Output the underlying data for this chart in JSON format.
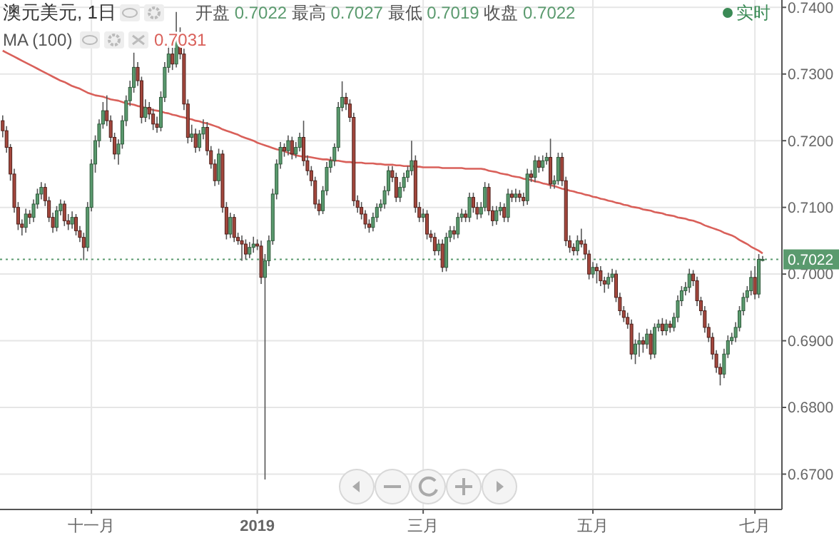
{
  "chart_data": {
    "type": "candlestick",
    "title": "澳元美元, 1日",
    "subtitle": "开盘 0.7022 最高 0.7027 最低 0.7019 收盘 0.7022",
    "annotations": [
      "0.7031",
      "实时"
    ],
    "categories": [
      null,
      null,
      null,
      null,
      null,
      null,
      null,
      null,
      null,
      null,
      null,
      null,
      null,
      null,
      null,
      null,
      null,
      null,
      null,
      null,
      null,
      null,
      null,
      "十一月",
      null,
      null,
      null,
      null,
      null,
      null,
      null,
      null,
      null,
      null,
      null,
      null,
      null,
      null,
      null,
      null,
      null,
      null,
      null,
      null,
      null,
      null,
      null,
      null,
      null,
      null,
      null,
      null,
      null,
      null,
      null,
      null,
      null,
      null,
      null,
      null,
      null,
      null,
      null,
      null,
      null,
      null,
      "2019",
      null,
      null,
      null,
      null,
      null,
      null,
      null,
      null,
      null,
      null,
      null,
      null,
      null,
      null,
      null,
      null,
      null,
      null,
      null,
      null,
      null,
      null,
      null,
      null,
      null,
      null,
      null,
      null,
      null,
      null,
      null,
      null,
      null,
      null,
      null,
      null,
      null,
      null,
      null,
      null,
      null,
      null,
      "三月",
      null,
      null,
      null,
      null,
      null,
      null,
      null,
      null,
      null,
      null,
      null,
      null,
      null,
      null,
      null,
      null,
      null,
      null,
      null,
      null,
      null,
      null,
      null,
      null,
      null,
      null,
      null,
      null,
      null,
      null,
      null,
      null,
      null,
      null,
      null,
      null,
      null,
      null,
      null,
      null,
      null,
      null,
      null,
      "五月",
      null,
      null,
      null,
      null,
      null,
      null,
      null,
      null,
      null,
      null,
      null,
      null,
      null,
      null,
      null,
      null,
      null,
      null,
      null,
      null,
      null,
      null,
      null,
      null,
      null,
      null,
      null,
      null,
      null,
      null,
      null,
      null,
      null,
      null,
      null,
      null,
      null,
      null,
      null,
      null,
      null,
      "七月",
      null,
      null
    ],
    "ohlc": [
      [
        0.723,
        0.7238,
        0.7205,
        0.7215
      ],
      [
        0.7215,
        0.7222,
        0.7182,
        0.719
      ],
      [
        0.719,
        0.7195,
        0.714,
        0.715
      ],
      [
        0.715,
        0.7158,
        0.7092,
        0.71
      ],
      [
        0.71,
        0.7108,
        0.7066,
        0.7075
      ],
      [
        0.7075,
        0.7082,
        0.7058,
        0.707
      ],
      [
        0.707,
        0.7098,
        0.7062,
        0.709
      ],
      [
        0.709,
        0.7096,
        0.7075,
        0.7085
      ],
      [
        0.7085,
        0.7112,
        0.7078,
        0.7105
      ],
      [
        0.7105,
        0.7128,
        0.7098,
        0.712
      ],
      [
        0.712,
        0.7138,
        0.7112,
        0.713
      ],
      [
        0.713,
        0.7136,
        0.7102,
        0.711
      ],
      [
        0.711,
        0.7116,
        0.7078,
        0.7085
      ],
      [
        0.7085,
        0.7092,
        0.7062,
        0.707
      ],
      [
        0.707,
        0.7102,
        0.7064,
        0.7095
      ],
      [
        0.7095,
        0.7112,
        0.7088,
        0.7105
      ],
      [
        0.7105,
        0.711,
        0.7072,
        0.708
      ],
      [
        0.708,
        0.709,
        0.7066,
        0.7075
      ],
      [
        0.7075,
        0.7094,
        0.7068,
        0.7085
      ],
      [
        0.7085,
        0.709,
        0.7058,
        0.7065
      ],
      [
        0.7065,
        0.7072,
        0.7048,
        0.7055
      ],
      [
        0.7055,
        0.7062,
        0.7021,
        0.704
      ],
      [
        0.704,
        0.7108,
        0.7034,
        0.71
      ],
      [
        0.71,
        0.7172,
        0.7094,
        0.7165
      ],
      [
        0.7165,
        0.7208,
        0.7152,
        0.72
      ],
      [
        0.72,
        0.7232,
        0.719,
        0.7225
      ],
      [
        0.7225,
        0.7258,
        0.7218,
        0.7245
      ],
      [
        0.7245,
        0.7268,
        0.7222,
        0.723
      ],
      [
        0.723,
        0.7238,
        0.7198,
        0.7205
      ],
      [
        0.7205,
        0.7212,
        0.7172,
        0.718
      ],
      [
        0.718,
        0.7202,
        0.7164,
        0.7195
      ],
      [
        0.7195,
        0.7238,
        0.7188,
        0.723
      ],
      [
        0.723,
        0.7268,
        0.7222,
        0.726
      ],
      [
        0.726,
        0.729,
        0.7252,
        0.728
      ],
      [
        0.728,
        0.7332,
        0.7272,
        0.731
      ],
      [
        0.731,
        0.7318,
        0.7282,
        0.729
      ],
      [
        0.729,
        0.7296,
        0.7226,
        0.7235
      ],
      [
        0.7235,
        0.7262,
        0.7228,
        0.725
      ],
      [
        0.725,
        0.7258,
        0.7232,
        0.724
      ],
      [
        0.724,
        0.7248,
        0.7216,
        0.7225
      ],
      [
        0.7225,
        0.7236,
        0.7212,
        0.722
      ],
      [
        0.722,
        0.7274,
        0.7214,
        0.7265
      ],
      [
        0.7265,
        0.7318,
        0.7258,
        0.731
      ],
      [
        0.731,
        0.7342,
        0.7302,
        0.733
      ],
      [
        0.733,
        0.734,
        0.7306,
        0.7315
      ],
      [
        0.7315,
        0.7393,
        0.731,
        0.736
      ],
      [
        0.736,
        0.737,
        0.7322,
        0.733
      ],
      [
        0.733,
        0.7338,
        0.7246,
        0.7255
      ],
      [
        0.7255,
        0.7262,
        0.7196,
        0.7205
      ],
      [
        0.7205,
        0.7224,
        0.7198,
        0.721
      ],
      [
        0.721,
        0.7218,
        0.7182,
        0.719
      ],
      [
        0.719,
        0.7216,
        0.7184,
        0.721
      ],
      [
        0.721,
        0.7232,
        0.7202,
        0.722
      ],
      [
        0.722,
        0.7228,
        0.7178,
        0.7185
      ],
      [
        0.7185,
        0.7192,
        0.7158,
        0.7165
      ],
      [
        0.7165,
        0.7172,
        0.7132,
        0.714
      ],
      [
        0.714,
        0.7188,
        0.7134,
        0.718
      ],
      [
        0.718,
        0.7186,
        0.7092,
        0.71
      ],
      [
        0.71,
        0.7108,
        0.7052,
        0.706
      ],
      [
        0.706,
        0.7092,
        0.7054,
        0.7085
      ],
      [
        0.7085,
        0.709,
        0.7048,
        0.7055
      ],
      [
        0.7055,
        0.7062,
        0.7044,
        0.705
      ],
      [
        0.705,
        0.7058,
        0.702,
        0.7045
      ],
      [
        0.7045,
        0.7052,
        0.7022,
        0.703
      ],
      [
        0.703,
        0.7048,
        0.7024,
        0.704
      ],
      [
        0.704,
        0.7056,
        0.7032,
        0.7045
      ],
      [
        0.7045,
        0.7052,
        0.7036,
        0.7042
      ],
      [
        0.7042,
        0.705,
        0.6985,
        0.6995
      ],
      [
        0.6995,
        0.703,
        0.6692,
        0.702
      ],
      [
        0.702,
        0.7058,
        0.7012,
        0.705
      ],
      [
        0.705,
        0.7128,
        0.7044,
        0.712
      ],
      [
        0.712,
        0.7172,
        0.7112,
        0.7165
      ],
      [
        0.7165,
        0.7198,
        0.7158,
        0.719
      ],
      [
        0.719,
        0.7196,
        0.7176,
        0.7185
      ],
      [
        0.7185,
        0.7208,
        0.7178,
        0.72
      ],
      [
        0.72,
        0.7206,
        0.7172,
        0.718
      ],
      [
        0.718,
        0.7198,
        0.7174,
        0.719
      ],
      [
        0.719,
        0.7212,
        0.7184,
        0.7205
      ],
      [
        0.7205,
        0.723,
        0.7162,
        0.717
      ],
      [
        0.717,
        0.7178,
        0.7148,
        0.7155
      ],
      [
        0.7155,
        0.7162,
        0.7132,
        0.714
      ],
      [
        0.714,
        0.7146,
        0.7098,
        0.7105
      ],
      [
        0.7105,
        0.7112,
        0.7088,
        0.7095
      ],
      [
        0.7095,
        0.7132,
        0.709,
        0.7125
      ],
      [
        0.7125,
        0.7168,
        0.7118,
        0.716
      ],
      [
        0.716,
        0.7176,
        0.7152,
        0.717
      ],
      [
        0.717,
        0.7196,
        0.7162,
        0.719
      ],
      [
        0.719,
        0.7258,
        0.7184,
        0.725
      ],
      [
        0.725,
        0.7289,
        0.7244,
        0.7265
      ],
      [
        0.7265,
        0.7272,
        0.7246,
        0.7255
      ],
      [
        0.7255,
        0.7262,
        0.7228,
        0.7235
      ],
      [
        0.7235,
        0.7242,
        0.7102,
        0.711
      ],
      [
        0.711,
        0.7118,
        0.7092,
        0.71
      ],
      [
        0.71,
        0.7108,
        0.7082,
        0.709
      ],
      [
        0.709,
        0.7096,
        0.7068,
        0.7075
      ],
      [
        0.7075,
        0.7082,
        0.7062,
        0.707
      ],
      [
        0.707,
        0.7092,
        0.7064,
        0.7085
      ],
      [
        0.7085,
        0.7106,
        0.7078,
        0.71
      ],
      [
        0.71,
        0.7112,
        0.7094,
        0.7105
      ],
      [
        0.7105,
        0.7132,
        0.7098,
        0.7125
      ],
      [
        0.7125,
        0.7162,
        0.7118,
        0.7155
      ],
      [
        0.7155,
        0.7162,
        0.7138,
        0.7145
      ],
      [
        0.7145,
        0.7152,
        0.7108,
        0.7115
      ],
      [
        0.7115,
        0.7138,
        0.7108,
        0.713
      ],
      [
        0.713,
        0.7152,
        0.7124,
        0.7145
      ],
      [
        0.7145,
        0.7162,
        0.7138,
        0.7155
      ],
      [
        0.7155,
        0.72,
        0.7148,
        0.717
      ],
      [
        0.717,
        0.7178,
        0.7092,
        0.71
      ],
      [
        0.71,
        0.7108,
        0.7078,
        0.7085
      ],
      [
        0.7085,
        0.7098,
        0.7078,
        0.709
      ],
      [
        0.709,
        0.7096,
        0.7052,
        0.706
      ],
      [
        0.706,
        0.7066,
        0.7048,
        0.7055
      ],
      [
        0.7055,
        0.7062,
        0.7028,
        0.7035
      ],
      [
        0.7035,
        0.7052,
        0.7028,
        0.7045
      ],
      [
        0.7045,
        0.7052,
        0.7003,
        0.701
      ],
      [
        0.701,
        0.7062,
        0.7004,
        0.7055
      ],
      [
        0.7055,
        0.7072,
        0.7048,
        0.7065
      ],
      [
        0.7065,
        0.7072,
        0.7052,
        0.706
      ],
      [
        0.706,
        0.7092,
        0.7054,
        0.7085
      ],
      [
        0.7085,
        0.7098,
        0.7078,
        0.709
      ],
      [
        0.709,
        0.7096,
        0.7078,
        0.7085
      ],
      [
        0.7085,
        0.7122,
        0.7078,
        0.7115
      ],
      [
        0.7115,
        0.7122,
        0.7092,
        0.71
      ],
      [
        0.71,
        0.7108,
        0.7082,
        0.709
      ],
      [
        0.709,
        0.7108,
        0.7084,
        0.71
      ],
      [
        0.71,
        0.7138,
        0.7094,
        0.713
      ],
      [
        0.713,
        0.7136,
        0.7088,
        0.7095
      ],
      [
        0.7095,
        0.7102,
        0.7072,
        0.708
      ],
      [
        0.708,
        0.7102,
        0.7074,
        0.7095
      ],
      [
        0.7095,
        0.7108,
        0.7088,
        0.71
      ],
      [
        0.71,
        0.7106,
        0.7078,
        0.7085
      ],
      [
        0.7085,
        0.7128,
        0.7078,
        0.712
      ],
      [
        0.712,
        0.7126,
        0.7108,
        0.7115
      ],
      [
        0.7115,
        0.7128,
        0.7108,
        0.712
      ],
      [
        0.712,
        0.7126,
        0.7108,
        0.7115
      ],
      [
        0.7115,
        0.7122,
        0.7102,
        0.711
      ],
      [
        0.711,
        0.7158,
        0.7104,
        0.715
      ],
      [
        0.715,
        0.7156,
        0.7138,
        0.7145
      ],
      [
        0.7145,
        0.7178,
        0.7138,
        0.717
      ],
      [
        0.717,
        0.7176,
        0.7152,
        0.716
      ],
      [
        0.716,
        0.7178,
        0.7154,
        0.717
      ],
      [
        0.717,
        0.7182,
        0.7164,
        0.7175
      ],
      [
        0.7175,
        0.7203,
        0.7128,
        0.7135
      ],
      [
        0.7135,
        0.7148,
        0.7128,
        0.714
      ],
      [
        0.714,
        0.7182,
        0.7134,
        0.7175
      ],
      [
        0.7175,
        0.7182,
        0.7132,
        0.714
      ],
      [
        0.714,
        0.7146,
        0.7042,
        0.705
      ],
      [
        0.705,
        0.7058,
        0.7032,
        0.704
      ],
      [
        0.704,
        0.7046,
        0.7028,
        0.7035
      ],
      [
        0.7035,
        0.7058,
        0.7028,
        0.705
      ],
      [
        0.705,
        0.7068,
        0.704,
        0.7045
      ],
      [
        0.7045,
        0.7052,
        0.7022,
        0.703
      ],
      [
        0.703,
        0.7036,
        0.6992,
        0.7
      ],
      [
        0.7,
        0.7018,
        0.6994,
        0.701
      ],
      [
        0.701,
        0.7016,
        0.6986,
        0.7005
      ],
      [
        0.7005,
        0.7012,
        0.6982,
        0.699
      ],
      [
        0.699,
        0.6996,
        0.6972,
        0.6985
      ],
      [
        0.6985,
        0.7002,
        0.6978,
        0.6995
      ],
      [
        0.6995,
        0.7008,
        0.6988,
        0.7
      ],
      [
        0.7,
        0.7006,
        0.6958,
        0.6965
      ],
      [
        0.6965,
        0.6972,
        0.6938,
        0.6945
      ],
      [
        0.6945,
        0.6952,
        0.6928,
        0.6935
      ],
      [
        0.6935,
        0.6942,
        0.6918,
        0.6925
      ],
      [
        0.6925,
        0.6932,
        0.6872,
        0.688
      ],
      [
        0.688,
        0.6902,
        0.6865,
        0.6895
      ],
      [
        0.6895,
        0.6912,
        0.6876,
        0.69
      ],
      [
        0.69,
        0.6906,
        0.6882,
        0.6895
      ],
      [
        0.6895,
        0.6918,
        0.6888,
        0.691
      ],
      [
        0.691,
        0.6916,
        0.6872,
        0.688
      ],
      [
        0.688,
        0.6926,
        0.6874,
        0.692
      ],
      [
        0.692,
        0.6932,
        0.6914,
        0.6925
      ],
      [
        0.6925,
        0.6934,
        0.6908,
        0.6915
      ],
      [
        0.6915,
        0.6932,
        0.6908,
        0.6925
      ],
      [
        0.6925,
        0.693,
        0.6912,
        0.692
      ],
      [
        0.692,
        0.6942,
        0.6914,
        0.6935
      ],
      [
        0.6935,
        0.6968,
        0.6928,
        0.696
      ],
      [
        0.696,
        0.6982,
        0.6952,
        0.6975
      ],
      [
        0.6975,
        0.6988,
        0.6968,
        0.698
      ],
      [
        0.698,
        0.7008,
        0.6972,
        0.7
      ],
      [
        0.7,
        0.7006,
        0.6982,
        0.699
      ],
      [
        0.699,
        0.6996,
        0.6952,
        0.696
      ],
      [
        0.696,
        0.6966,
        0.6938,
        0.6945
      ],
      [
        0.6945,
        0.6952,
        0.6912,
        0.692
      ],
      [
        0.692,
        0.6926,
        0.6898,
        0.6905
      ],
      [
        0.6905,
        0.6912,
        0.6872,
        0.688
      ],
      [
        0.688,
        0.6886,
        0.6852,
        0.686
      ],
      [
        0.686,
        0.6866,
        0.6833,
        0.685
      ],
      [
        0.685,
        0.6888,
        0.6844,
        0.688
      ],
      [
        0.688,
        0.6908,
        0.6874,
        0.69
      ],
      [
        0.69,
        0.6912,
        0.6894,
        0.6905
      ],
      [
        0.6905,
        0.6928,
        0.6898,
        0.692
      ],
      [
        0.692,
        0.6952,
        0.6914,
        0.6945
      ],
      [
        0.6945,
        0.6972,
        0.6938,
        0.6965
      ],
      [
        0.6965,
        0.6982,
        0.6958,
        0.6975
      ],
      [
        0.6975,
        0.7005,
        0.6968,
        0.6995
      ],
      [
        0.6995,
        0.7012,
        0.6962,
        0.697
      ],
      [
        0.697,
        0.703,
        0.6964,
        0.7022
      ],
      [
        0.7022,
        0.7027,
        0.7019,
        0.7022
      ]
    ],
    "series": [
      {
        "name": "MA (100)",
        "type": "line",
        "color": "#d9605a",
        "values": [
          0.7335,
          0.7332,
          0.7329,
          0.7326,
          0.7323,
          0.732,
          0.7317,
          0.7314,
          0.7311,
          0.7308,
          0.7305,
          0.7302,
          0.7299,
          0.7296,
          0.7293,
          0.729,
          0.7288,
          0.7285,
          0.7282,
          0.728,
          0.7278,
          0.7275,
          0.7272,
          0.727,
          0.7268,
          0.7267,
          0.7266,
          0.7264,
          0.7262,
          0.7261,
          0.726,
          0.7258,
          0.7256,
          0.7255,
          0.7254,
          0.7252,
          0.7251,
          0.7249,
          0.7248,
          0.7246,
          0.7245,
          0.7244,
          0.7242,
          0.7241,
          0.7239,
          0.7238,
          0.7236,
          0.7235,
          0.7233,
          0.7232,
          0.723,
          0.7229,
          0.7227,
          0.7226,
          0.7224,
          0.7222,
          0.722,
          0.7217,
          0.7215,
          0.7213,
          0.7211,
          0.7209,
          0.7206,
          0.7204,
          0.7202,
          0.72,
          0.7197,
          0.7195,
          0.7193,
          0.7191,
          0.7189,
          0.7187,
          0.7186,
          0.7184,
          0.7182,
          0.718,
          0.7178,
          0.7177,
          0.7176,
          0.7176,
          0.7175,
          0.7174,
          0.7173,
          0.7172,
          0.7172,
          0.7171,
          0.717,
          0.717,
          0.7169,
          0.7168,
          0.7168,
          0.7167,
          0.7167,
          0.7167,
          0.7166,
          0.7166,
          0.7166,
          0.7165,
          0.7165,
          0.7164,
          0.7164,
          0.7164,
          0.7163,
          0.7163,
          0.7162,
          0.7162,
          0.7162,
          0.7161,
          0.7161,
          0.716,
          0.716,
          0.716,
          0.716,
          0.716,
          0.7159,
          0.7159,
          0.7159,
          0.7159,
          0.7159,
          0.7159,
          0.7158,
          0.7158,
          0.7158,
          0.7158,
          0.7158,
          0.7157,
          0.7155,
          0.7154,
          0.7153,
          0.7151,
          0.715,
          0.7149,
          0.7147,
          0.7146,
          0.7145,
          0.7143,
          0.7142,
          0.7141,
          0.7139,
          0.7138,
          0.7136,
          0.7135,
          0.7133,
          0.7132,
          0.713,
          0.7128,
          0.7127,
          0.7125,
          0.7124,
          0.7122,
          0.7121,
          0.7119,
          0.7118,
          0.7116,
          0.7115,
          0.7113,
          0.7112,
          0.711,
          0.7109,
          0.7107,
          0.7106,
          0.7104,
          0.7103,
          0.7101,
          0.71,
          0.7099,
          0.7097,
          0.7096,
          0.7095,
          0.7093,
          0.7092,
          0.7091,
          0.7089,
          0.7088,
          0.7087,
          0.7085,
          0.7084,
          0.7083,
          0.7081,
          0.708,
          0.7078,
          0.7076,
          0.7073,
          0.7071,
          0.7069,
          0.7067,
          0.7065,
          0.7062,
          0.706,
          0.7058,
          0.7055,
          0.7051,
          0.7048,
          0.7045,
          0.7041,
          0.7038,
          0.7035,
          0.7031
        ]
      }
    ],
    "ylim": [
      0.6647,
      0.7411
    ],
    "yticks": [
      {
        "value": 0.67,
        "label": "0.6700"
      },
      {
        "value": 0.68,
        "label": "0.6800"
      },
      {
        "value": 0.69,
        "label": "0.6900"
      },
      {
        "value": 0.7,
        "label": "0.7000"
      },
      {
        "value": 0.71,
        "label": "0.7100"
      },
      {
        "value": 0.72,
        "label": "0.7200"
      },
      {
        "value": 0.73,
        "label": "0.7300"
      },
      {
        "value": 0.74,
        "label": "0.7400"
      }
    ],
    "ref_lines": [
      {
        "axis": "y",
        "value": 0.7022,
        "label": "0.7022",
        "color": "#5a9a6e",
        "line_style": "dotted"
      }
    ],
    "grid": true,
    "legend": "top left"
  }
}
